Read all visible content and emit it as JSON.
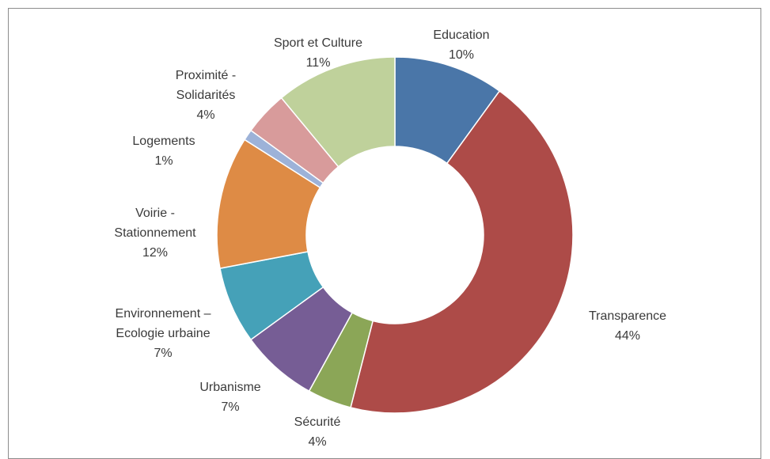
{
  "chart_data": {
    "type": "pie",
    "variant": "doughnut",
    "legend": "none",
    "slices": [
      {
        "label_lines": [
          "Education"
        ],
        "value": 10,
        "percent_label": "10%",
        "color": "#4a76a8"
      },
      {
        "label_lines": [
          "Transparence"
        ],
        "value": 44,
        "percent_label": "44%",
        "color": "#ad4b48"
      },
      {
        "label_lines": [
          "Sécurité"
        ],
        "value": 4,
        "percent_label": "4%",
        "color": "#8ba657"
      },
      {
        "label_lines": [
          "Urbanisme"
        ],
        "value": 7,
        "percent_label": "7%",
        "color": "#765d95"
      },
      {
        "label_lines": [
          "Environnement –",
          "Ecologie urbaine"
        ],
        "value": 7,
        "percent_label": "7%",
        "color": "#45a1b8"
      },
      {
        "label_lines": [
          "Voirie -",
          "Stationnement"
        ],
        "value": 12,
        "percent_label": "12%",
        "color": "#de8b45"
      },
      {
        "label_lines": [
          "Logements"
        ],
        "value": 1,
        "percent_label": "1%",
        "color": "#9db2d8"
      },
      {
        "label_lines": [
          "Proximité -",
          "Solidarités"
        ],
        "value": 4,
        "percent_label": "4%",
        "color": "#d89b9b"
      },
      {
        "label_lines": [
          "Sport et Culture"
        ],
        "value": 11,
        "percent_label": "11%",
        "color": "#bfd19b"
      }
    ]
  }
}
